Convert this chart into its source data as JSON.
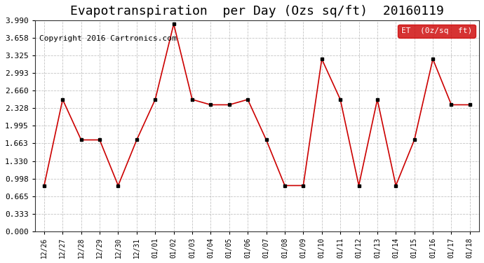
{
  "title": "Evapotranspiration  per Day (Ozs sq/ft)  20160119",
  "copyright": "Copyright 2016 Cartronics.com",
  "legend_label": "ET  (0z/sq  ft)",
  "dates": [
    "12/26",
    "12/27",
    "12/28",
    "12/29",
    "12/30",
    "12/31",
    "01/01",
    "01/02",
    "01/03",
    "01/04",
    "01/05",
    "01/06",
    "01/07",
    "01/08",
    "01/09",
    "01/10",
    "01/11",
    "01/12",
    "01/13",
    "01/14",
    "01/15",
    "01/16",
    "01/17",
    "01/18"
  ],
  "values": [
    0.865,
    2.494,
    1.729,
    1.729,
    0.865,
    1.729,
    2.494,
    3.924,
    2.494,
    2.394,
    2.394,
    2.494,
    1.729,
    0.865,
    0.865,
    3.26,
    2.494,
    0.865,
    2.494,
    0.865,
    1.729,
    3.26,
    2.394,
    2.394
  ],
  "ylim": [
    0.0,
    3.99
  ],
  "yticks": [
    0.0,
    0.333,
    0.665,
    0.998,
    1.33,
    1.663,
    1.995,
    2.328,
    2.66,
    2.993,
    3.325,
    3.658,
    3.99
  ],
  "line_color": "#cc0000",
  "marker_color": "#000000",
  "bg_color": "#ffffff",
  "grid_color": "#aaaaaa",
  "title_fontsize": 13,
  "copyright_fontsize": 8,
  "legend_bg": "#cc0000",
  "legend_text_color": "#ffffff"
}
